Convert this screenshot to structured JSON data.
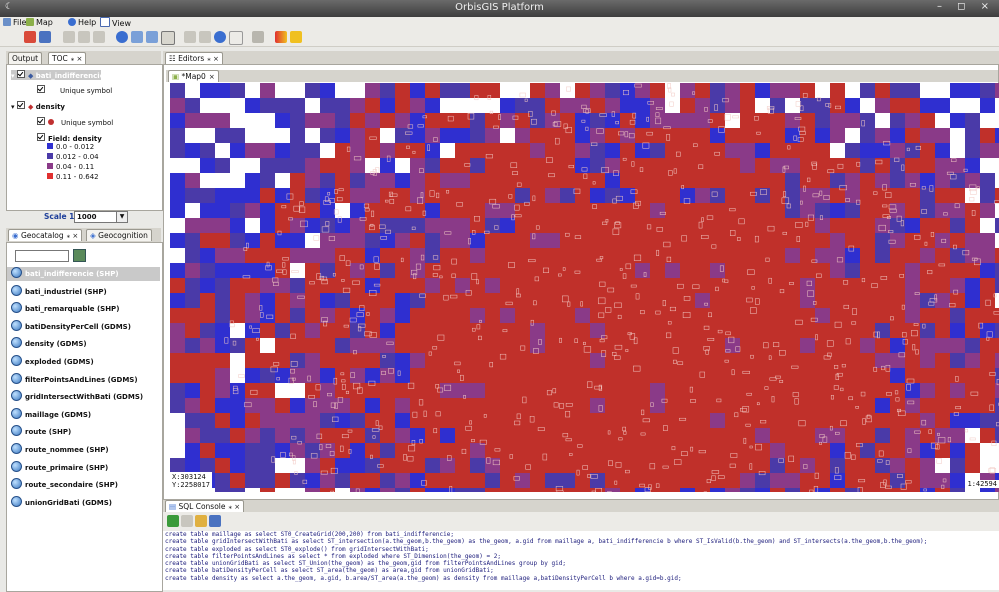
{
  "window": {
    "title": "OrbisGIS Platform",
    "controls": "– ◻ ×"
  },
  "menu": [
    {
      "label": "File",
      "icon": "home-icon"
    },
    {
      "label": "Map",
      "icon": "map-icon"
    },
    {
      "label": "Help",
      "icon": "help-icon"
    },
    {
      "label": "View",
      "icon": "view-icon"
    }
  ],
  "left_tabs": [
    {
      "label": "Output"
    },
    {
      "label": "TOC"
    }
  ],
  "toc": {
    "layers": [
      {
        "name": "bati_indifferencie",
        "symbol": "Unique symbol"
      },
      {
        "name": "density",
        "symbol": "Unique symbol"
      }
    ],
    "field_label": "Field: density",
    "classes": [
      {
        "label": "0.0 - 0.012",
        "color": "#2f2fd0"
      },
      {
        "label": "0.012 - 0.04",
        "color": "#4a3aa8"
      },
      {
        "label": "0.04 - 0.11",
        "color": "#8a3a88"
      },
      {
        "label": "0.11 - 0.642",
        "color": "#e03030"
      }
    ],
    "scale_label": "Scale 1 :",
    "scale_value": "1000"
  },
  "geo_tabs": [
    {
      "label": "Geocatalog"
    },
    {
      "label": "Geocognition"
    }
  ],
  "geocatalog": {
    "search_value": "",
    "items": [
      "bati_indifferencie (SHP)",
      "bati_industriel (SHP)",
      "bati_remarquable (SHP)",
      "batiDensityPerCell (GDMS)",
      "density (GDMS)",
      "exploded (GDMS)",
      "filterPointsAndLines (GDMS)",
      "gridIntersectWithBati (GDMS)",
      "maillage (GDMS)",
      "route (SHP)",
      "route_nommee (SHP)",
      "route_primaire (SHP)",
      "route_secondaire (SHP)",
      "unionGridBati (GDMS)"
    ]
  },
  "editors": {
    "tab": "Editors",
    "map_tab": "*Map0"
  },
  "map": {
    "coord_x": "X:303124",
    "coord_y": "Y:2258017",
    "scale_readout": "1:42594",
    "colors": {
      "low": "#2f2fd0",
      "midlow": "#4a3aa8",
      "midhigh": "#8a3a88",
      "high": "#c0302a"
    }
  },
  "sql_console": {
    "tab": "SQL Console",
    "lines": [
      "create table maillage as select ST0_CreateGrid(200,200) from bati_indifferencie;",
      "create table gridIntersectWithBati as select ST_intersection(a.the_geom,b.the_geom) as the_geom, a.gid from maillage a, bati_indifferencie b where ST_IsValid(b.the_geom) and ST_intersects(a.the_geom,b.the_geom);",
      "create table exploded as select ST0_explode() from gridIntersectWithBati;",
      "create table filterPointsAndLines as select * from exploded where ST_Dimension(the_geom) = 2;",
      "create table unionGridBati as select ST_Union(the_geom) as the_geom,gid from filterPointsAndLines group by gid;",
      "create table batiDensityPerCell as select ST_area(the_geom) as area,gid from unionGridBati;",
      "create table density as select a.the_geom, a.gid, b.area/ST_area(a.the_geom) as density from maillage a,batiDensityPerCell b where a.gid=b.gid;"
    ]
  }
}
